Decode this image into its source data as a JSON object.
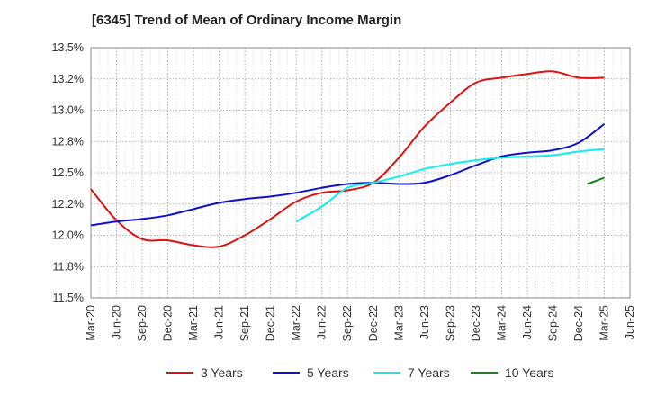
{
  "chart_data": {
    "type": "line",
    "title": "[6345]  Trend of Mean of Ordinary Income Margin",
    "xlabel": "",
    "ylabel": "",
    "x_ticks": [
      "Mar-20",
      "Jun-20",
      "Sep-20",
      "Dec-20",
      "Mar-21",
      "Jun-21",
      "Sep-21",
      "Dec-21",
      "Mar-22",
      "Jun-22",
      "Sep-22",
      "Dec-22",
      "Mar-23",
      "Jun-23",
      "Sep-23",
      "Dec-23",
      "Mar-24",
      "Jun-24",
      "Sep-24",
      "Dec-24",
      "Mar-25",
      "Jun-25"
    ],
    "y_ticks": [
      "11.5%",
      "11.8%",
      "12.0%",
      "12.2%",
      "12.5%",
      "12.8%",
      "13.0%",
      "13.2%",
      "13.5%"
    ],
    "y_tick_values": [
      11.5,
      11.75,
      12.0,
      12.25,
      12.5,
      12.75,
      13.0,
      13.25,
      13.5
    ],
    "ylim": [
      11.5,
      13.5
    ],
    "grid": true,
    "legend_position": "bottom",
    "series": [
      {
        "name": "3 Years",
        "color": "#dd1111",
        "x": [
          "Mar-20",
          "Jun-20",
          "Sep-20",
          "Dec-20",
          "Mar-21",
          "Jun-21",
          "Sep-21",
          "Dec-21",
          "Mar-22",
          "Jun-22",
          "Sep-22",
          "Dec-22",
          "Mar-23",
          "Jun-23",
          "Sep-23",
          "Dec-23",
          "Mar-24",
          "Jun-24",
          "Sep-24",
          "Dec-24",
          "Mar-25"
        ],
        "values": [
          12.37,
          12.12,
          11.97,
          11.96,
          11.92,
          11.91,
          12.0,
          12.13,
          12.27,
          12.34,
          12.36,
          12.42,
          12.62,
          12.87,
          13.06,
          13.22,
          13.26,
          13.29,
          13.31,
          13.26,
          13.26
        ]
      },
      {
        "name": "5 Years",
        "color": "#1111cc",
        "x": [
          "Mar-20",
          "Jun-20",
          "Sep-20",
          "Dec-20",
          "Mar-21",
          "Jun-21",
          "Sep-21",
          "Dec-21",
          "Mar-22",
          "Jun-22",
          "Sep-22",
          "Dec-22",
          "Mar-23",
          "Jun-23",
          "Sep-23",
          "Dec-23",
          "Mar-24",
          "Jun-24",
          "Sep-24",
          "Dec-24",
          "Mar-25"
        ],
        "values": [
          12.08,
          12.11,
          12.13,
          12.16,
          12.21,
          12.26,
          12.29,
          12.31,
          12.34,
          12.38,
          12.41,
          12.42,
          12.41,
          12.42,
          12.48,
          12.56,
          12.63,
          12.66,
          12.68,
          12.74,
          12.89
        ]
      },
      {
        "name": "7 Years",
        "color": "#11eeee",
        "x": [
          "Mar-22",
          "Jun-22",
          "Sep-22",
          "Dec-22",
          "Mar-23",
          "Jun-23",
          "Sep-23",
          "Dec-23",
          "Mar-24",
          "Jun-24",
          "Sep-24",
          "Dec-24",
          "Mar-25"
        ],
        "values": [
          12.11,
          12.23,
          12.38,
          12.42,
          12.47,
          12.53,
          12.57,
          12.6,
          12.62,
          12.63,
          12.64,
          12.67,
          12.69
        ]
      },
      {
        "name": "10 Years",
        "color": "#118811",
        "x": [
          "Jan-25",
          "Mar-25"
        ],
        "values": [
          12.41,
          12.46
        ]
      }
    ]
  }
}
